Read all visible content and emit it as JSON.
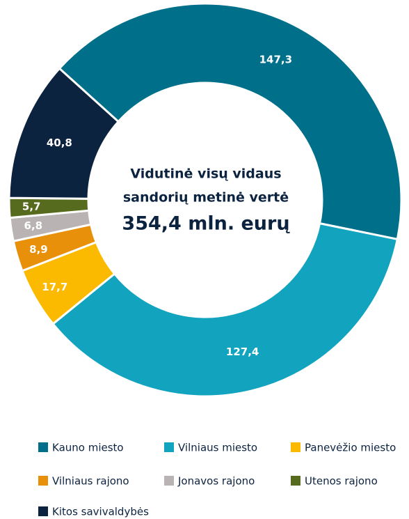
{
  "chart_data": {
    "type": "donut",
    "title": [
      "Vidutinė visų vidaus",
      "sandorių metinė vertė"
    ],
    "center_label": "354,4 mln. eurų",
    "categories": [
      "Kauno miesto",
      "Vilniaus miesto",
      "Panevėžio miesto",
      "Vilniaus rajono",
      "Jonavos rajono",
      "Utenos rajono",
      "Kitos savivaldybės"
    ],
    "values": [
      147.3,
      127.4,
      17.7,
      8.9,
      6.8,
      5.7,
      40.8
    ],
    "value_labels": [
      "147,3",
      "127,4",
      "17,7",
      "8,9",
      "6,8",
      "5,7",
      "40,8"
    ],
    "colors": [
      "#006f8a",
      "#12a3bf",
      "#fbb900",
      "#e8900a",
      "#b9b3b4",
      "#566b1e",
      "#0c2340"
    ],
    "legend": "bottom"
  }
}
